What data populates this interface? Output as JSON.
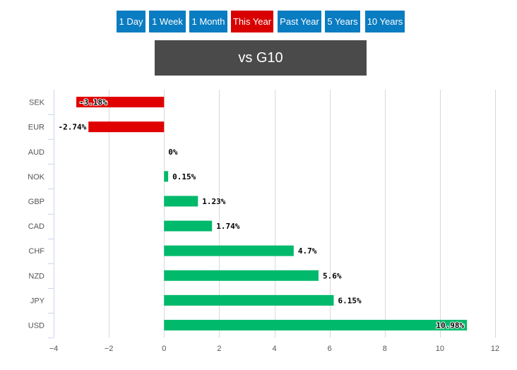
{
  "periods": {
    "items": [
      {
        "label": "1 Day",
        "active": false
      },
      {
        "label": "1 Week",
        "active": false
      },
      {
        "label": "1 Month",
        "active": false
      },
      {
        "label": "This Year",
        "active": true
      },
      {
        "label": "Past Year",
        "active": false
      },
      {
        "label": "5 Years",
        "active": false
      },
      {
        "label": "10 Years",
        "active": false
      }
    ]
  },
  "header": {
    "title": "vs G10"
  },
  "colors": {
    "tab": "#0a7cc1",
    "tab_active": "#d90000",
    "title_bg": "#4a4a4a",
    "positive": "#00b96b",
    "negative": "#e00000",
    "grid": "#d9d9d9",
    "axis": "#ccd6eb",
    "tick_text": "#555555",
    "label_text": "#000000"
  },
  "chart_data": {
    "type": "bar",
    "orientation": "horizontal",
    "title": "vs G10",
    "categories": [
      "SEK",
      "EUR",
      "AUD",
      "NOK",
      "GBP",
      "CAD",
      "CHF",
      "NZD",
      "JPY",
      "USD"
    ],
    "values": [
      -3.18,
      -2.74,
      0,
      0.15,
      1.23,
      1.74,
      4.7,
      5.6,
      6.15,
      10.98
    ],
    "data_labels": [
      "-3.18%",
      "-2.74%",
      "0%",
      "0.15%",
      "1.23%",
      "1.74%",
      "4.7%",
      "5.6%",
      "6.15%",
      "10.98%"
    ],
    "x_ticks": [
      -4,
      -2,
      0,
      2,
      4,
      6,
      8,
      10,
      12
    ],
    "x_tick_labels": [
      "−4",
      "−2",
      "0",
      "2",
      "4",
      "6",
      "8",
      "10",
      "12"
    ],
    "xlim": [
      -4,
      12
    ],
    "xlabel": "",
    "ylabel": "",
    "grid": true,
    "legend": false
  }
}
